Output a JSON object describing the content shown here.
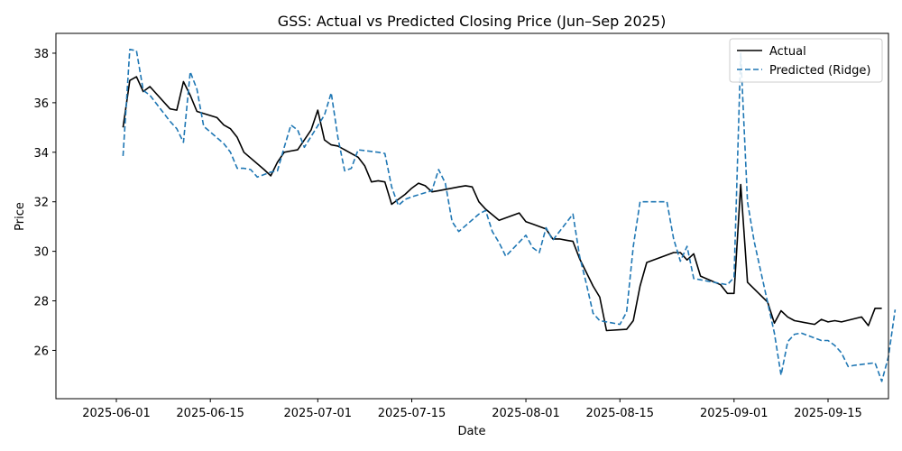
{
  "chart_data": {
    "type": "line",
    "title": "GSS: Actual vs Predicted Closing Price (Jun–Sep 2025)",
    "xlabel": "Date",
    "ylabel": "Price",
    "xlim": [
      "2025-05-23",
      "2025-09-24"
    ],
    "ylim": [
      24.05,
      38.8
    ],
    "x_ticks": [
      "2025-06-01",
      "2025-06-15",
      "2025-07-01",
      "2025-07-15",
      "2025-08-01",
      "2025-08-15",
      "2025-09-01",
      "2025-09-15"
    ],
    "y_ticks": [
      26,
      28,
      30,
      32,
      34,
      36,
      38
    ],
    "grid": false,
    "legend_position": "top-right",
    "series": [
      {
        "name": "Actual",
        "color": "#000000",
        "style": "solid",
        "points": [
          [
            "2025-06-02",
            35.0
          ],
          [
            "2025-06-03",
            36.9
          ],
          [
            "2025-06-04",
            37.05
          ],
          [
            "2025-06-05",
            36.45
          ],
          [
            "2025-06-06",
            36.65
          ],
          [
            "2025-06-09",
            35.75
          ],
          [
            "2025-06-10",
            35.7
          ],
          [
            "2025-06-11",
            36.85
          ],
          [
            "2025-06-12",
            36.3
          ],
          [
            "2025-06-13",
            35.65
          ],
          [
            "2025-06-16",
            35.4
          ],
          [
            "2025-06-17",
            35.1
          ],
          [
            "2025-06-18",
            34.95
          ],
          [
            "2025-06-19",
            34.6
          ],
          [
            "2025-06-20",
            34.0
          ],
          [
            "2025-06-23",
            33.3
          ],
          [
            "2025-06-24",
            33.05
          ],
          [
            "2025-06-25",
            33.6
          ],
          [
            "2025-06-26",
            34.0
          ],
          [
            "2025-06-27",
            34.05
          ],
          [
            "2025-06-28",
            34.1
          ],
          [
            "2025-06-30",
            34.9
          ],
          [
            "2025-07-01",
            35.7
          ],
          [
            "2025-07-02",
            34.5
          ],
          [
            "2025-07-03",
            34.3
          ],
          [
            "2025-07-04",
            34.25
          ],
          [
            "2025-07-07",
            33.8
          ],
          [
            "2025-07-08",
            33.45
          ],
          [
            "2025-07-09",
            32.8
          ],
          [
            "2025-07-10",
            32.85
          ],
          [
            "2025-07-11",
            32.8
          ],
          [
            "2025-07-12",
            31.9
          ],
          [
            "2025-07-14",
            32.3
          ],
          [
            "2025-07-15",
            32.55
          ],
          [
            "2025-07-16",
            32.75
          ],
          [
            "2025-07-17",
            32.65
          ],
          [
            "2025-07-18",
            32.4
          ],
          [
            "2025-07-19",
            32.45
          ],
          [
            "2025-07-22",
            32.6
          ],
          [
            "2025-07-23",
            32.65
          ],
          [
            "2025-07-24",
            32.6
          ],
          [
            "2025-07-25",
            32.0
          ],
          [
            "2025-07-26",
            31.7
          ],
          [
            "2025-07-28",
            31.25
          ],
          [
            "2025-07-31",
            31.55
          ],
          [
            "2025-08-01",
            31.2
          ],
          [
            "2025-08-02",
            31.1
          ],
          [
            "2025-08-04",
            30.9
          ],
          [
            "2025-08-05",
            30.5
          ],
          [
            "2025-08-06",
            30.5
          ],
          [
            "2025-08-07",
            30.45
          ],
          [
            "2025-08-08",
            30.4
          ],
          [
            "2025-08-09",
            29.7
          ],
          [
            "2025-08-11",
            28.6
          ],
          [
            "2025-08-12",
            28.15
          ],
          [
            "2025-08-13",
            26.8
          ],
          [
            "2025-08-16",
            26.85
          ],
          [
            "2025-08-17",
            27.2
          ],
          [
            "2025-08-18",
            28.6
          ],
          [
            "2025-08-19",
            29.55
          ],
          [
            "2025-08-23",
            29.95
          ],
          [
            "2025-08-24",
            29.95
          ],
          [
            "2025-08-25",
            29.65
          ],
          [
            "2025-08-26",
            29.9
          ],
          [
            "2025-08-27",
            29.0
          ],
          [
            "2025-08-30",
            28.65
          ],
          [
            "2025-08-31",
            28.3
          ],
          [
            "2025-09-01",
            28.3
          ],
          [
            "2025-09-02",
            32.7
          ],
          [
            "2025-09-03",
            28.75
          ],
          [
            "2025-09-06",
            27.95
          ],
          [
            "2025-09-07",
            27.1
          ],
          [
            "2025-09-08",
            27.6
          ],
          [
            "2025-09-09",
            27.35
          ],
          [
            "2025-09-10",
            27.2
          ],
          [
            "2025-09-13",
            27.05
          ],
          [
            "2025-09-14",
            27.25
          ],
          [
            "2025-09-15",
            27.15
          ],
          [
            "2025-09-16",
            27.2
          ],
          [
            "2025-09-17",
            27.15
          ],
          [
            "2025-09-20",
            27.35
          ],
          [
            "2025-09-21",
            27.0
          ],
          [
            "2025-09-22",
            27.7
          ],
          [
            "2025-09-23",
            27.7
          ]
        ]
      },
      {
        "name": "Predicted (Ridge)",
        "color": "#1f77b4",
        "style": "dashed",
        "points": [
          [
            "2025-06-02",
            33.85
          ],
          [
            "2025-06-03",
            38.15
          ],
          [
            "2025-06-04",
            38.1
          ],
          [
            "2025-06-05",
            36.5
          ],
          [
            "2025-06-06",
            36.3
          ],
          [
            "2025-06-09",
            35.25
          ],
          [
            "2025-06-10",
            34.95
          ],
          [
            "2025-06-11",
            34.4
          ],
          [
            "2025-06-12",
            37.25
          ],
          [
            "2025-06-13",
            36.55
          ],
          [
            "2025-06-14",
            35.05
          ],
          [
            "2025-06-17",
            34.35
          ],
          [
            "2025-06-18",
            34.0
          ],
          [
            "2025-06-19",
            33.35
          ],
          [
            "2025-06-20",
            33.35
          ],
          [
            "2025-06-21",
            33.3
          ],
          [
            "2025-06-22",
            33.0
          ],
          [
            "2025-06-24",
            33.2
          ],
          [
            "2025-06-25",
            33.25
          ],
          [
            "2025-06-26",
            34.2
          ],
          [
            "2025-06-27",
            35.1
          ],
          [
            "2025-06-28",
            34.9
          ],
          [
            "2025-06-29",
            34.2
          ],
          [
            "2025-07-02",
            35.5
          ],
          [
            "2025-07-03",
            36.4
          ],
          [
            "2025-07-04",
            34.6
          ],
          [
            "2025-07-05",
            33.25
          ],
          [
            "2025-07-06",
            33.35
          ],
          [
            "2025-07-07",
            34.1
          ],
          [
            "2025-07-10",
            34.0
          ],
          [
            "2025-07-11",
            33.95
          ],
          [
            "2025-07-12",
            32.6
          ],
          [
            "2025-07-13",
            31.85
          ],
          [
            "2025-07-14",
            32.1
          ],
          [
            "2025-07-15",
            32.2
          ],
          [
            "2025-07-18",
            32.45
          ],
          [
            "2025-07-19",
            33.3
          ],
          [
            "2025-07-20",
            32.75
          ],
          [
            "2025-07-21",
            31.2
          ],
          [
            "2025-07-22",
            30.8
          ],
          [
            "2025-07-25",
            31.5
          ],
          [
            "2025-07-26",
            31.65
          ],
          [
            "2025-07-27",
            30.8
          ],
          [
            "2025-07-28",
            30.35
          ],
          [
            "2025-07-29",
            29.8
          ],
          [
            "2025-08-01",
            30.65
          ],
          [
            "2025-08-02",
            30.15
          ],
          [
            "2025-08-03",
            29.95
          ],
          [
            "2025-08-04",
            30.95
          ],
          [
            "2025-08-05",
            30.45
          ],
          [
            "2025-08-08",
            31.5
          ],
          [
            "2025-08-09",
            29.8
          ],
          [
            "2025-08-10",
            28.7
          ],
          [
            "2025-08-11",
            27.5
          ],
          [
            "2025-08-12",
            27.2
          ],
          [
            "2025-08-15",
            27.05
          ],
          [
            "2025-08-16",
            27.55
          ],
          [
            "2025-08-17",
            30.2
          ],
          [
            "2025-08-18",
            32.0
          ],
          [
            "2025-08-22",
            32.0
          ],
          [
            "2025-08-23",
            30.5
          ],
          [
            "2025-08-24",
            29.6
          ],
          [
            "2025-08-25",
            30.2
          ],
          [
            "2025-08-26",
            28.9
          ],
          [
            "2025-08-27",
            28.85
          ],
          [
            "2025-08-28",
            28.8
          ],
          [
            "2025-08-31",
            28.65
          ],
          [
            "2025-09-01",
            28.95
          ],
          [
            "2025-09-02",
            38.0
          ],
          [
            "2025-09-03",
            32.0
          ],
          [
            "2025-09-04",
            30.4
          ],
          [
            "2025-09-07",
            26.7
          ],
          [
            "2025-09-08",
            25.0
          ],
          [
            "2025-09-09",
            26.35
          ],
          [
            "2025-09-10",
            26.65
          ],
          [
            "2025-09-11",
            26.7
          ],
          [
            "2025-09-14",
            26.4
          ],
          [
            "2025-09-15",
            26.4
          ],
          [
            "2025-09-16",
            26.2
          ],
          [
            "2025-09-17",
            25.9
          ],
          [
            "2025-09-18",
            25.35
          ],
          [
            "2025-09-19",
            25.4
          ],
          [
            "2025-09-22",
            25.5
          ],
          [
            "2025-09-23",
            24.75
          ],
          [
            "2025-09-24",
            25.75
          ],
          [
            "2025-09-25",
            27.65
          ]
        ]
      }
    ]
  }
}
